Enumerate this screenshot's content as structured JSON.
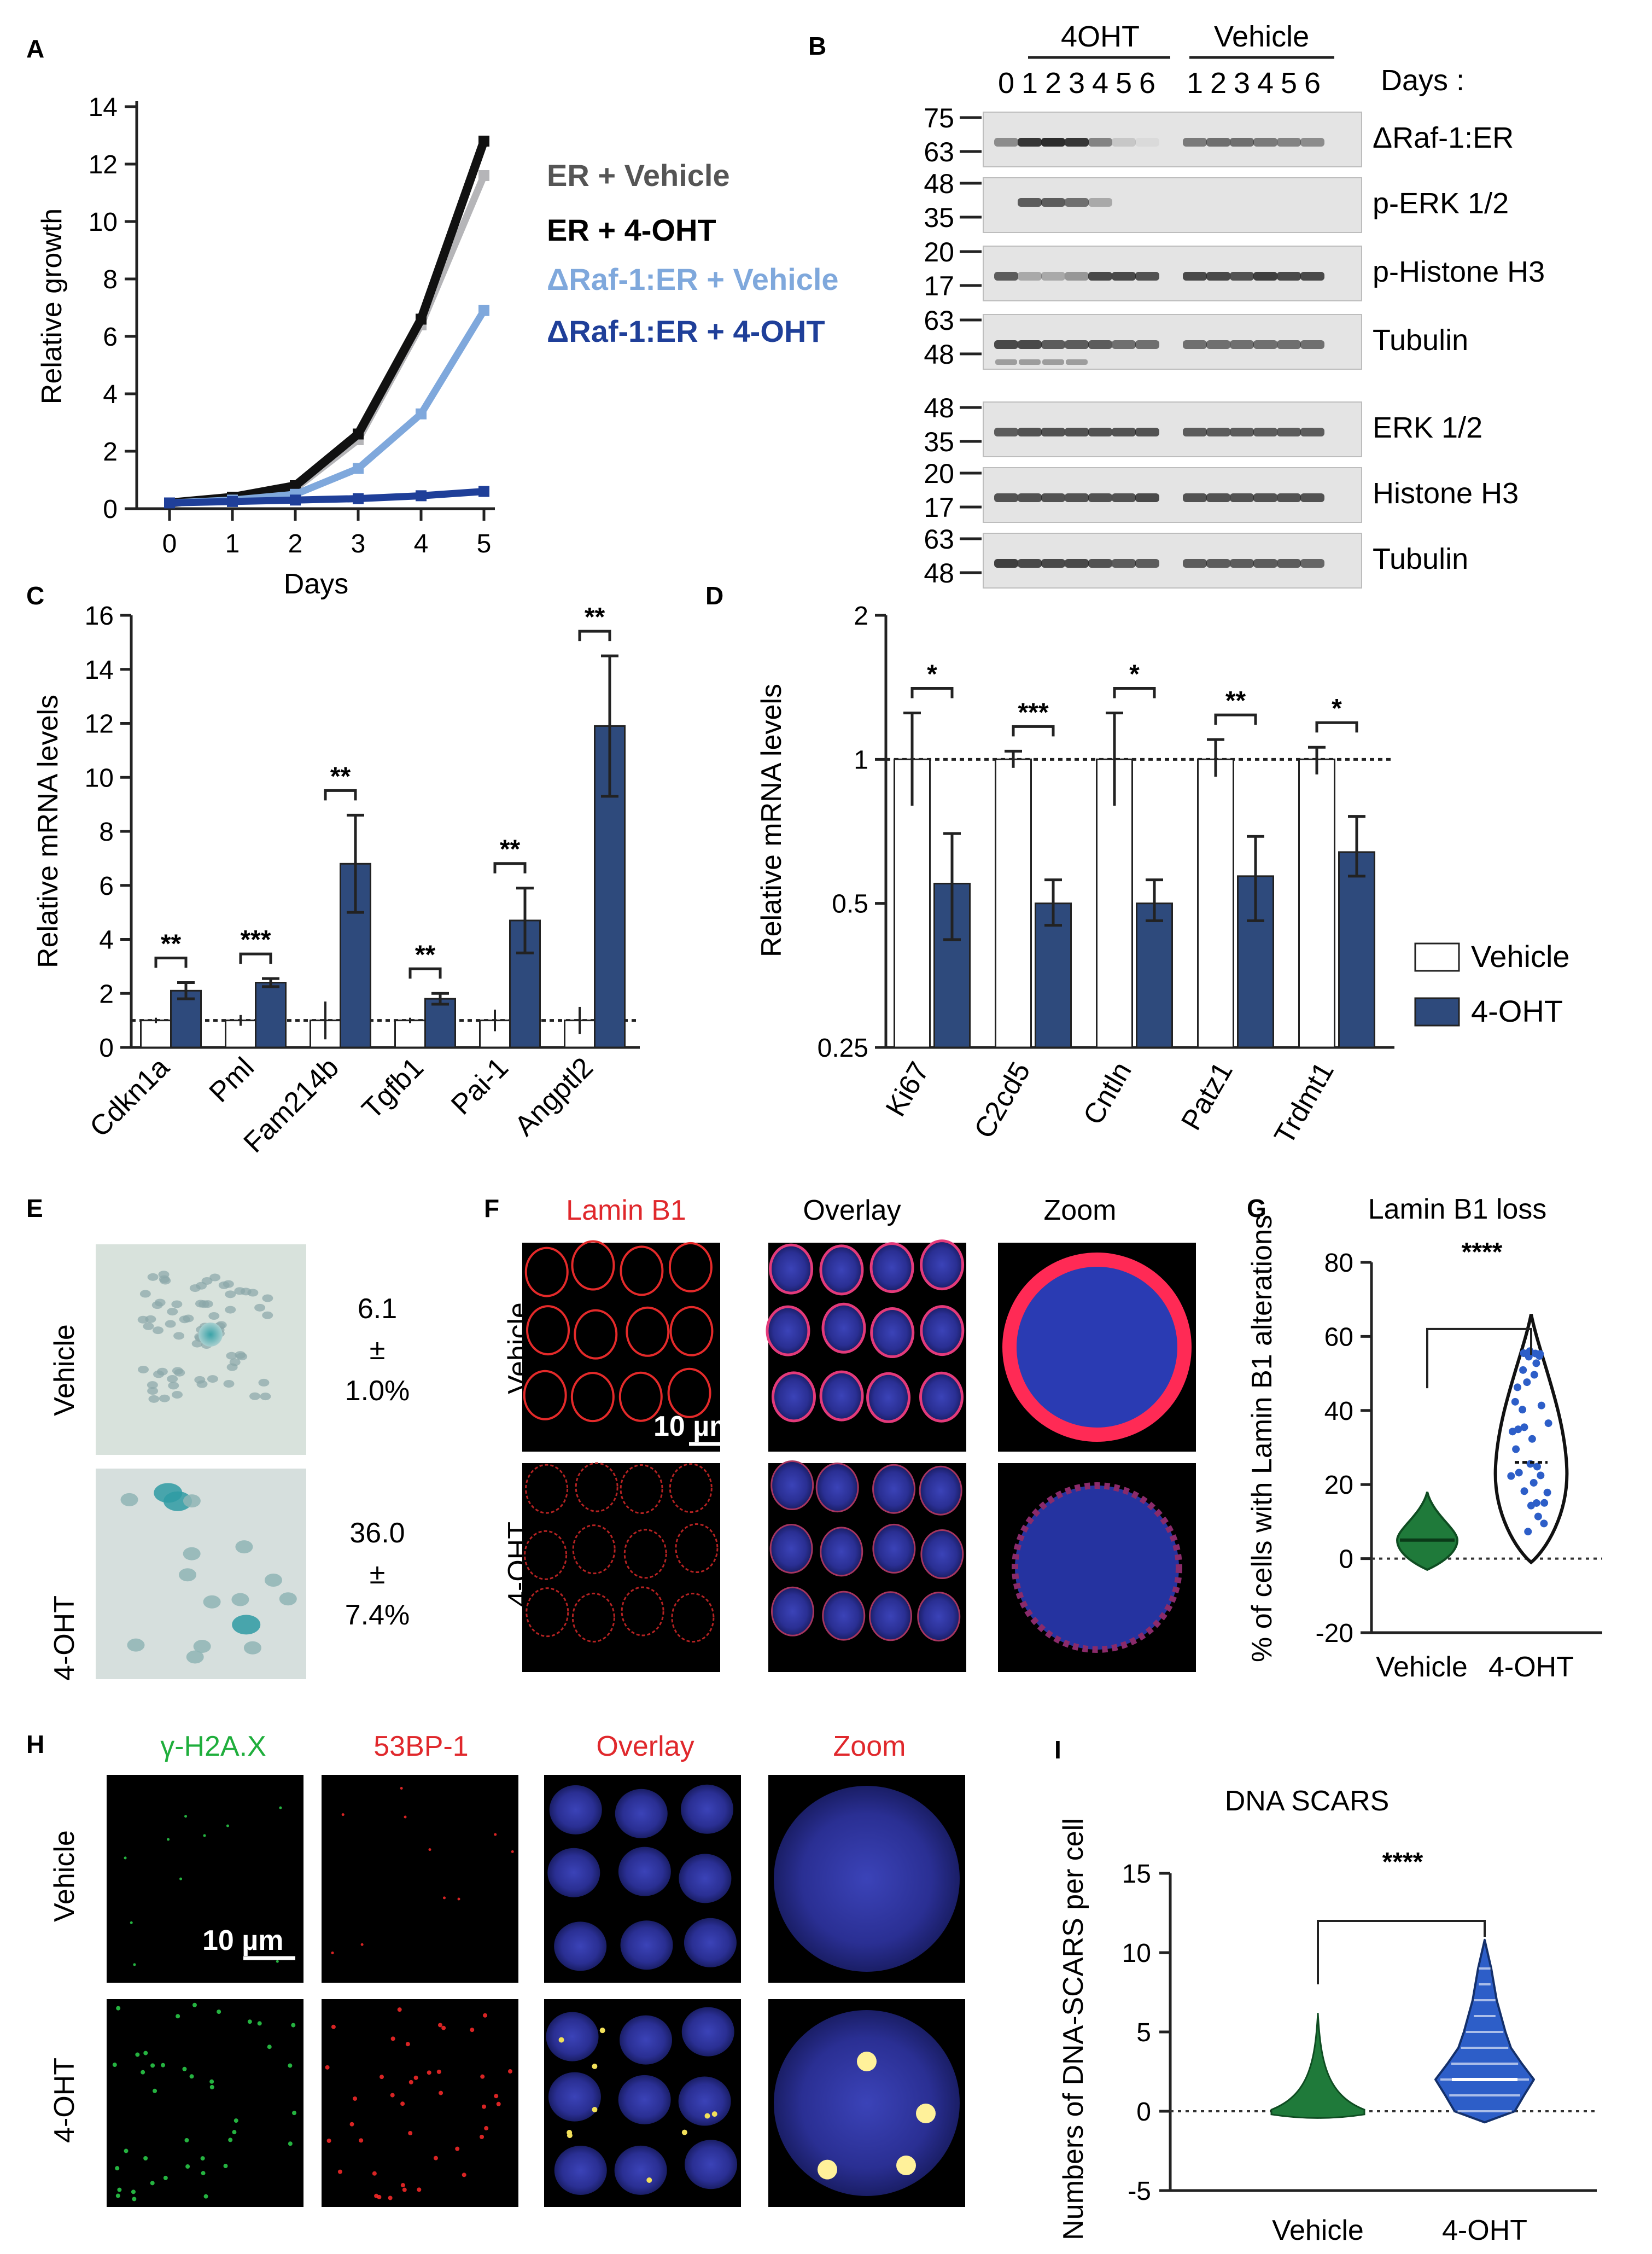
{
  "panels": {
    "A": "A",
    "B": "B",
    "C": "C",
    "D": "D",
    "E": "E",
    "F": "F",
    "G": "G",
    "H": "H",
    "I": "I"
  },
  "colors": {
    "er_vehicle": "#b5b5b8",
    "er_4oht": "#111111",
    "raf_vehicle": "#7fa8dc",
    "raf_4oht": "#1f3f99",
    "bar_dark": "#2e4a7c",
    "green": "#1f7a3a",
    "violin_blue": "#2d5ec8",
    "red_label": "#e0282c",
    "green_label": "#1fae3c"
  },
  "panel_a": {
    "chart_data": {
      "type": "line",
      "x": [
        0,
        1,
        2,
        3,
        4,
        5
      ],
      "xlabel": "Days",
      "ylabel": "Relative growth",
      "ylim": [
        0,
        14
      ],
      "yticks": [
        0,
        2,
        4,
        6,
        8,
        10,
        12,
        14
      ],
      "series": [
        {
          "name": "ER + Vehicle",
          "values": [
            0.2,
            0.35,
            0.7,
            2.4,
            6.4,
            11.6
          ]
        },
        {
          "name": "ER + 4-OHT",
          "values": [
            0.2,
            0.4,
            0.8,
            2.6,
            6.6,
            12.8
          ]
        },
        {
          "name": "ΔRaf-1:ER + Vehicle",
          "values": [
            0.2,
            0.3,
            0.5,
            1.4,
            3.3,
            6.9
          ]
        },
        {
          "name": "ΔRaf-1:ER + 4-OHT",
          "values": [
            0.2,
            0.25,
            0.3,
            0.35,
            0.45,
            0.6
          ]
        }
      ]
    }
  },
  "panel_b": {
    "group_4oht": "4OHT",
    "group_vehicle": "Vehicle",
    "days_label": "Days :",
    "lanes_4oht": [
      "0",
      "1",
      "2",
      "3",
      "4",
      "5",
      "6"
    ],
    "lanes_vehicle": [
      "1",
      "2",
      "3",
      "4",
      "5",
      "6"
    ],
    "blots": [
      {
        "label": "ΔRaf-1:ER",
        "mw": [
          "75",
          "63"
        ]
      },
      {
        "label": "p-ERK 1/2",
        "mw": [
          "48",
          "35"
        ]
      },
      {
        "label": "p-Histone H3",
        "mw": [
          "20",
          "17"
        ]
      },
      {
        "label": "Tubulin",
        "mw": [
          "63",
          "48"
        ]
      },
      {
        "label": "ERK 1/2",
        "mw": [
          "48",
          "35"
        ]
      },
      {
        "label": "Histone H3",
        "mw": [
          "20",
          "17"
        ]
      },
      {
        "label": "Tubulin",
        "mw": [
          "63",
          "48"
        ]
      }
    ]
  },
  "panel_c": {
    "chart_data": {
      "type": "bar",
      "ylabel": "Relative mRNA levels",
      "ylim": [
        0,
        16
      ],
      "yticks": [
        0,
        2,
        4,
        6,
        8,
        10,
        12,
        14,
        16
      ],
      "categories": [
        "Cdkn1a",
        "Pml",
        "Fam214b",
        "Tgfb1",
        "Pai-1",
        "Angptl2"
      ],
      "series": [
        {
          "name": "Vehicle",
          "values": [
            1,
            1,
            1,
            1,
            1,
            1
          ],
          "err": [
            0.1,
            0.2,
            0.7,
            0.1,
            0.4,
            0.5
          ]
        },
        {
          "name": "4-OHT",
          "values": [
            2.1,
            2.4,
            6.8,
            1.8,
            4.7,
            11.9
          ],
          "err": [
            0.3,
            0.15,
            1.8,
            0.2,
            1.2,
            2.6
          ]
        }
      ],
      "significance": [
        "**",
        "***",
        "**",
        "**",
        "**",
        "**"
      ]
    }
  },
  "panel_d": {
    "chart_data": {
      "type": "bar",
      "ylabel": "Relative mRNA levels",
      "yscale": "log2",
      "ylim": [
        0.25,
        2
      ],
      "yticks": [
        "0.25",
        "0.5",
        "1",
        "2"
      ],
      "categories": [
        "Ki67",
        "C2cd5",
        "Cntln",
        "Patz1",
        "Trdmt1"
      ],
      "series": [
        {
          "name": "Vehicle",
          "values": [
            1,
            1,
            1,
            1,
            1
          ]
        },
        {
          "name": "4-OHT",
          "values": [
            0.55,
            0.5,
            0.5,
            0.57,
            0.64
          ]
        }
      ],
      "significance": [
        "*",
        "***",
        "*",
        "**",
        "*"
      ]
    },
    "legend": [
      "Vehicle",
      "4-OHT"
    ]
  },
  "panel_e": {
    "rows": [
      "Vehicle",
      "4-OHT"
    ],
    "values": [
      [
        "6.1",
        "±",
        "1.0%"
      ],
      [
        "36.0",
        "±",
        "7.4%"
      ]
    ]
  },
  "panel_f": {
    "cols": [
      "Lamin B1",
      "Overlay",
      "Zoom"
    ],
    "rows": [
      "Vehicle",
      "4-OHT"
    ],
    "scale": "10 µm"
  },
  "panel_g": {
    "chart_data": {
      "type": "violin",
      "title": "Lamin B1 loss",
      "ylabel": "% of cells with Lamin B1 alterations",
      "ylim": [
        -20,
        80
      ],
      "yticks": [
        -20,
        0,
        20,
        40,
        60,
        80
      ],
      "categories": [
        "Vehicle",
        "4-OHT"
      ],
      "medians": [
        5,
        26
      ],
      "significance": "****"
    }
  },
  "panel_h": {
    "cols": [
      "γ-H2A.X",
      "53BP-1",
      "Overlay",
      "Zoom"
    ],
    "rows": [
      "Vehicle",
      "4-OHT"
    ],
    "scale": "10 µm"
  },
  "panel_i": {
    "chart_data": {
      "type": "violin",
      "title": "DNA SCARS",
      "ylabel": "Numbers of DNA-SCARS per cell",
      "ylim": [
        -5,
        15
      ],
      "yticks": [
        -5,
        0,
        5,
        10,
        15
      ],
      "categories": [
        "Vehicle",
        "4-OHT"
      ],
      "medians": [
        0,
        2
      ],
      "significance": "****"
    }
  }
}
